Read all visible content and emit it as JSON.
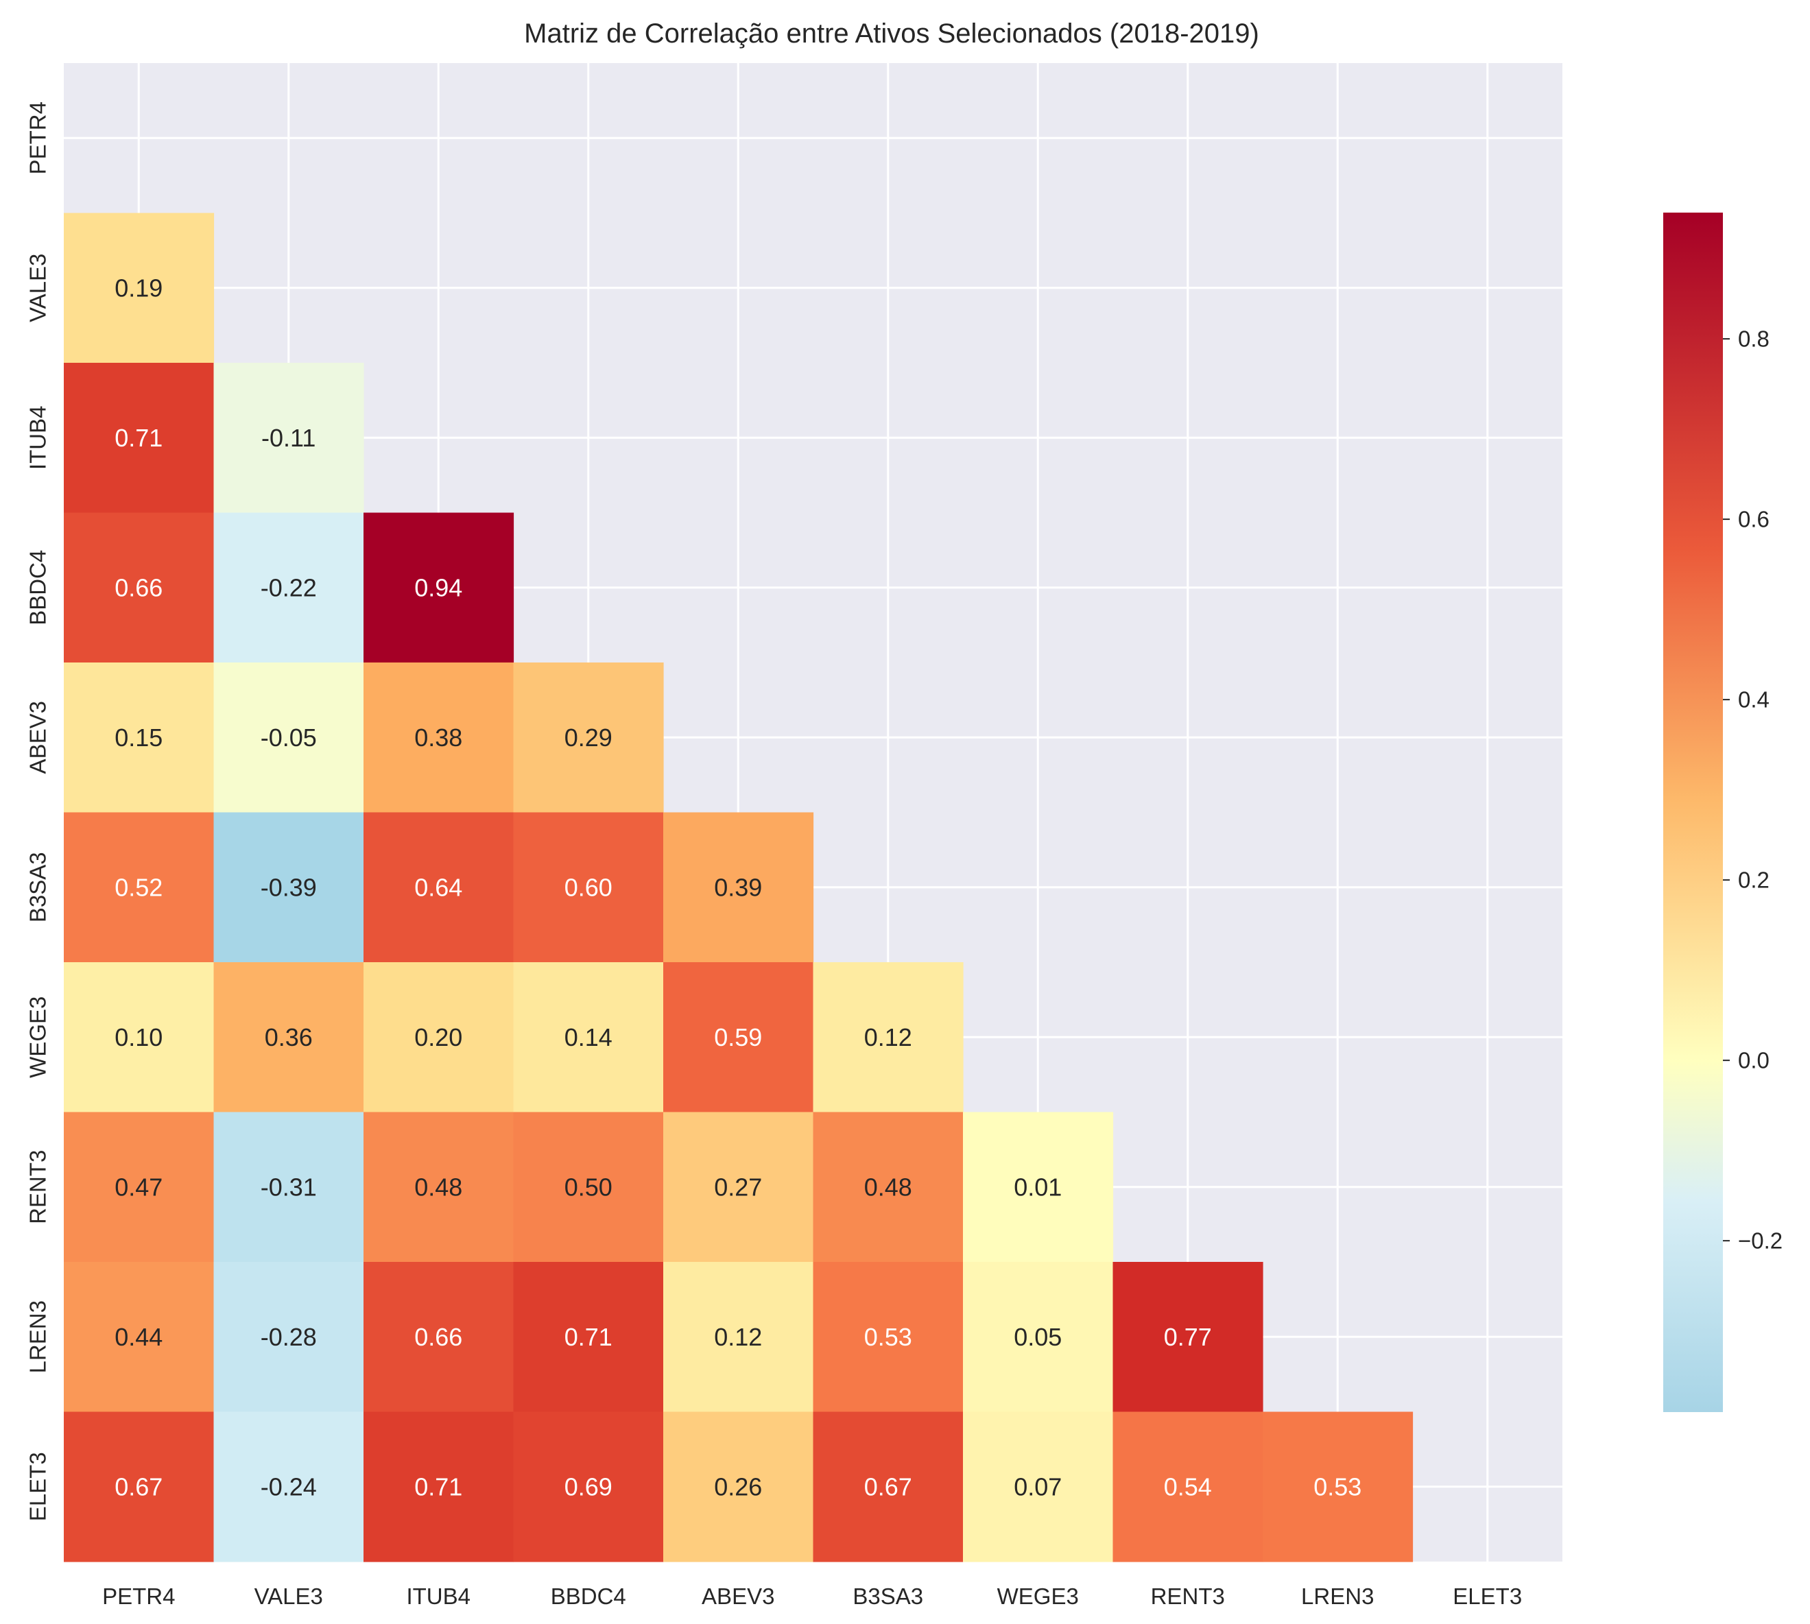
{
  "chart_data": {
    "type": "heatmap",
    "title": "Matriz de Correlação entre Ativos Selecionados (2018-2019)",
    "labels": [
      "PETR4",
      "VALE3",
      "ITUB4",
      "BBDC4",
      "ABEV3",
      "B3SA3",
      "WEGE3",
      "RENT3",
      "LREN3",
      "ELET3"
    ],
    "mask": "upper-triangle-including-diagonal",
    "values": [
      [
        null,
        null,
        null,
        null,
        null,
        null,
        null,
        null,
        null,
        null
      ],
      [
        0.19,
        null,
        null,
        null,
        null,
        null,
        null,
        null,
        null,
        null
      ],
      [
        0.71,
        -0.11,
        null,
        null,
        null,
        null,
        null,
        null,
        null,
        null
      ],
      [
        0.66,
        -0.22,
        0.94,
        null,
        null,
        null,
        null,
        null,
        null,
        null
      ],
      [
        0.15,
        -0.05,
        0.38,
        0.29,
        null,
        null,
        null,
        null,
        null,
        null
      ],
      [
        0.52,
        -0.39,
        0.64,
        0.6,
        0.39,
        null,
        null,
        null,
        null,
        null
      ],
      [
        0.1,
        0.36,
        0.2,
        0.14,
        0.59,
        0.12,
        null,
        null,
        null,
        null
      ],
      [
        0.47,
        -0.31,
        0.48,
        0.5,
        0.27,
        0.48,
        0.01,
        null,
        null,
        null
      ],
      [
        0.44,
        -0.28,
        0.66,
        0.71,
        0.12,
        0.53,
        0.05,
        0.77,
        null,
        null
      ],
      [
        0.67,
        -0.24,
        0.71,
        0.69,
        0.26,
        0.67,
        0.07,
        0.54,
        0.53,
        null
      ]
    ],
    "colormap": "RdYlBu_r",
    "center": 0,
    "vmin": -0.39,
    "vmax": 0.94,
    "colorbar_ticks": [
      "0.8",
      "0.6",
      "0.4",
      "0.2",
      "0.0",
      "−0.2"
    ],
    "grid": true,
    "background_color": "#EAEAF2",
    "gridline_color": "#FFFFFF"
  }
}
